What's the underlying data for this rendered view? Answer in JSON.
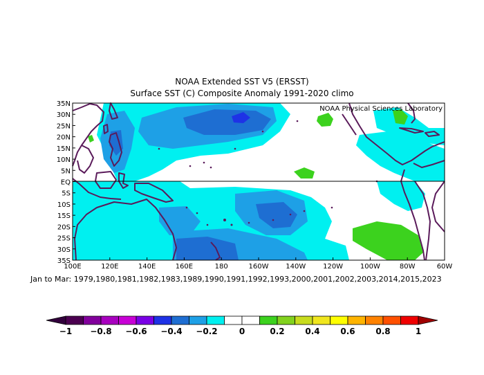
{
  "title_line1": "NOAA Extended SST V5 (ERSST)",
  "title_line2": "Surface SST (C) Composite Anomaly 1991-2020 climo",
  "watermark": "NOAA Physical Sciences Laboratory",
  "caption": "Jan to Mar: 1979,1980,1981,1982,1983,1989,1990,1991,1992,1993,2000,2001,2002,2003,2014,2015,2023",
  "lat_labels": [
    "35N",
    "30N",
    "25N",
    "20N",
    "15N",
    "10N",
    "5N",
    "EQ",
    "5S",
    "10S",
    "15S",
    "20S",
    "25S",
    "30S",
    "35S"
  ],
  "lon_labels": [
    "100E",
    "120E",
    "140E",
    "160E",
    "180",
    "160W",
    "140W",
    "120W",
    "100W",
    "80W",
    "60W"
  ],
  "colorbar": {
    "ticks": [
      "−1",
      "−0.8",
      "−0.6",
      "−0.4",
      "−0.2",
      "0",
      "0.2",
      "0.4",
      "0.6",
      "0.8",
      "1"
    ],
    "colors": [
      "#4b0050",
      "#82009c",
      "#a800bf",
      "#c800d6",
      "#7a00e6",
      "#1e32e6",
      "#1e6ed2",
      "#1ea0e6",
      "#00f0f0",
      "#ffffff",
      "#ffffff",
      "#3cd21e",
      "#82d21e",
      "#c8dc1e",
      "#f0e61e",
      "#ffff00",
      "#ffb400",
      "#ff8200",
      "#ff5000",
      "#f00000"
    ]
  },
  "colors": {
    "ocean": "#ffffff",
    "land": "#5a1a5a",
    "cyan": "#00f0f0",
    "light_blue": "#1ea0e6",
    "mid_blue": "#1e6ed2",
    "dark_blue": "#1e32e6",
    "green": "#3cd21e"
  }
}
